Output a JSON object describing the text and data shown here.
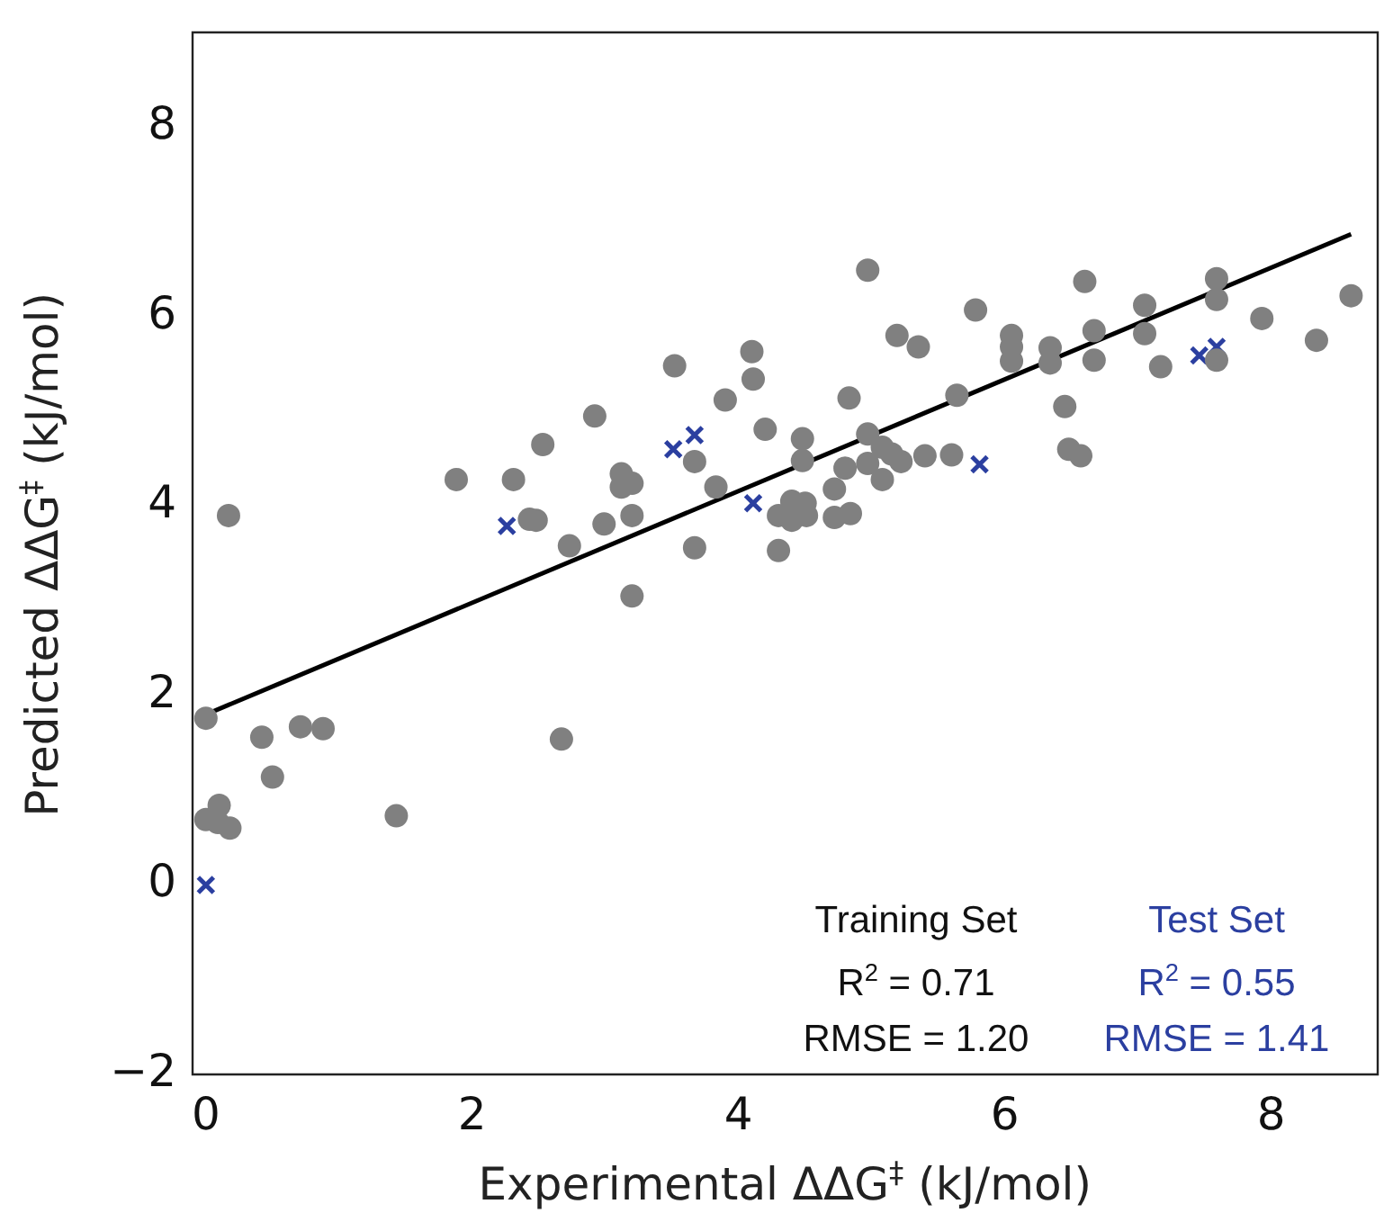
{
  "chart_data": {
    "type": "scatter",
    "xlabel": "Experimental ΔΔG$^{‡}$ (kJ/mol)",
    "ylabel": "Predicted ΔΔG$^{‡}$ (kJ/mol)",
    "xlim": [
      -0.1,
      8.8
    ],
    "ylim": [
      -2,
      9
    ],
    "xticks": [
      0,
      2,
      4,
      6,
      8
    ],
    "yticks": [
      {
        "value": -2,
        "label": "−2"
      },
      0,
      2,
      4,
      6,
      8
    ],
    "grid": false,
    "annotations": [
      "Training Set",
      "R$^{2}$ = 0.71",
      "RMSE = 1.20",
      "Test Set",
      "R$^{2}$ = 0.55",
      "RMSE = 1.41"
    ],
    "series": [
      {
        "type": "scatter",
        "marker": "circle",
        "color": "#808080",
        "x": [
          0,
          0.42,
          0.71,
          0.88,
          0.5,
          0.1,
          0,
          0.18,
          0.09,
          1.43,
          2.67,
          0.17,
          1.88,
          2.31,
          2.53,
          2.92,
          2.43,
          2.48,
          2.73,
          2.99,
          3.12,
          3.12,
          3.2,
          3.2,
          3.2,
          3.52,
          3.67,
          3.67,
          3.83,
          3.9,
          4.1,
          4.11,
          4.2,
          4.48,
          4.48,
          4.3,
          4.4,
          4.5,
          4.4,
          4.51,
          4.3,
          4.72,
          4.8,
          4.72,
          4.84,
          4.83,
          4.97,
          4.97,
          5.08,
          5.15,
          5.22,
          5.08,
          5.4,
          5.6,
          5.19,
          5.35,
          4.97,
          5.64,
          5.78,
          6.05,
          6.05,
          6.05,
          6.34,
          6.34,
          6.45,
          6.48,
          6.57,
          6.6,
          6.67,
          6.67,
          7.05,
          7.05,
          7.17,
          7.59,
          7.59,
          7.59,
          7.93,
          8.34,
          8.6
        ],
        "values": [
          1.76,
          1.56,
          1.67,
          1.65,
          1.14,
          0.84,
          0.69,
          0.6,
          0.66,
          0.73,
          1.54,
          3.9,
          4.28,
          4.28,
          4.65,
          4.95,
          3.86,
          3.85,
          3.58,
          3.81,
          4.34,
          4.2,
          4.24,
          3.9,
          3.05,
          5.48,
          4.47,
          3.56,
          4.2,
          5.12,
          5.63,
          5.34,
          4.81,
          4.71,
          4.48,
          3.9,
          4.05,
          4.03,
          3.85,
          3.9,
          3.53,
          4.18,
          4.4,
          3.88,
          3.92,
          5.14,
          4.76,
          4.45,
          4.62,
          4.55,
          4.47,
          4.28,
          4.53,
          4.54,
          5.8,
          5.68,
          6.49,
          5.17,
          6.07,
          5.8,
          5.68,
          5.53,
          5.67,
          5.51,
          5.05,
          4.6,
          4.53,
          6.37,
          5.85,
          5.54,
          6.12,
          5.82,
          5.47,
          6.4,
          6.18,
          5.54,
          5.98,
          5.75,
          6.22
        ]
      },
      {
        "type": "scatter",
        "marker": "cross",
        "color": "#2b3fa0",
        "x": [
          0,
          2.26,
          3.51,
          3.67,
          4.11,
          5.81,
          7.46,
          7.59
        ],
        "values": [
          0,
          3.79,
          4.6,
          4.75,
          4.03,
          4.44,
          5.59,
          5.68
        ]
      },
      {
        "type": "line",
        "marker": "none",
        "color": "#000000",
        "x": [
          0,
          8.6
        ],
        "values": [
          1.8,
          6.87
        ]
      }
    ]
  }
}
